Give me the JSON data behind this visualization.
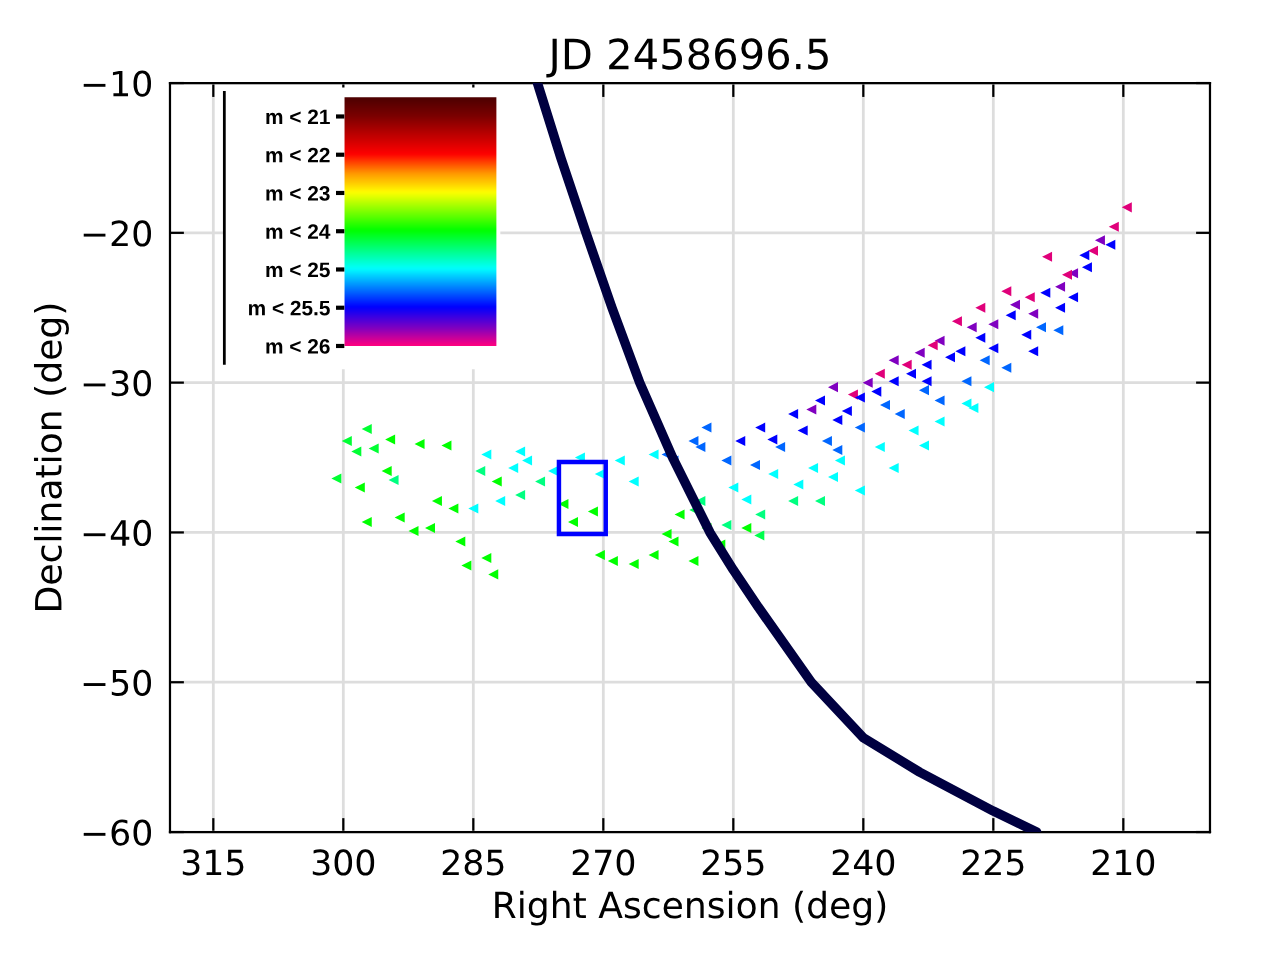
{
  "chart_data": {
    "type": "scatter",
    "title": "JD 2458696.5",
    "xlabel": "Right Ascension (deg)",
    "ylabel": "Declination (deg)",
    "xlim": [
      320,
      200
    ],
    "xticks": [
      315,
      300,
      285,
      270,
      255,
      240,
      225,
      210
    ],
    "ylim": [
      -60,
      -10
    ],
    "yticks": [
      {
        "value": -60,
        "label": "−60"
      },
      {
        "value": -50,
        "label": "−50"
      },
      {
        "value": -40,
        "label": "−40"
      },
      {
        "value": -30,
        "label": "−30"
      },
      {
        "value": -20,
        "label": "−20"
      },
      {
        "value": -10,
        "label": "−10"
      }
    ],
    "grid": true,
    "annotations": [
      "m < 21",
      "m < 22",
      "m < 23",
      "m < 24",
      "m < 25",
      "m < 25.5",
      "m < 26"
    ],
    "series": [
      {
        "marker": "triangle",
        "x": [
          299.6,
          297.3,
          298.5,
          296.5,
          294.6,
          291.2,
          288.1,
          300.8,
          295.0,
          294.2,
          298.1,
          297.3,
          293.5,
          291.9,
          290.0,
          286.5,
          285.8,
          282.7,
          283.5,
          289.2,
          287.3,
          284.2,
          282.3,
          279.6,
          277.3,
          274.6,
          273.5,
          271.2,
          270.4,
          268.9,
          266.5,
          264.2,
          262.7,
          259.6,
          261.2,
          258.1,
          285.0,
          281.9,
          280.4,
          278.8,
          275.8,
          272.7,
          270.4,
          268.1,
          266.5,
          264.2,
          279.6,
          283.5,
          262.7,
          259.6,
          258.1,
          209.6,
          211.1,
          218.8,
          213.5,
          220.8,
          223.5,
          226.5,
          229.2,
          235.0,
          241.2,
          238.1,
          215.8,
          217.3,
          220.4,
          225.0,
          231.2,
          236.5,
          243.5,
          212.7,
          214.2,
          217.3,
          221.2,
          225.0,
          228.8,
          232.7,
          236.5,
          240.4,
          245.0,
          248.1,
          251.9,
          254.2,
          241.9,
          232.7,
          215.8,
          220.4,
          223.5,
          228.1,
          231.2,
          235.8,
          240.4,
          244.2,
          249.6,
          255.8,
          258.8,
          261.9,
          228.1,
          231.2,
          234.2,
          238.1,
          242.7,
          245.8,
          250.4,
          255.0,
          236.5,
          240.4,
          245.0,
          248.1,
          251.9,
          255.8,
          258.8,
          253.5,
          256.5,
          261.9,
          230.0,
          226.5,
          223.0,
          219.0,
          214.5,
          211.5,
          234.5,
          238.5,
          243.0,
          247.0,
          250.5,
          227.5,
          233.5,
          222.5,
          239.5,
          246.0,
          216.5,
          232.0,
          226.0,
          219.5,
          217.5,
          233.0,
          237.5,
          243.0,
          252.5,
          225.5,
          247.5,
          253.5,
          243.5,
          233.0,
          227.3,
          259.5,
          252.0
        ],
        "values": [
          -33.9,
          -33.1,
          -34.6,
          -34.4,
          -33.8,
          -34.1,
          -34.2,
          -36.4,
          -35.9,
          -36.5,
          -37.0,
          -39.3,
          -39.0,
          -39.9,
          -39.7,
          -40.6,
          -42.2,
          -42.8,
          -41.7,
          -37.9,
          -38.4,
          -35.9,
          -36.6,
          -37.5,
          -36.6,
          -38.1,
          -39.3,
          -38.6,
          -41.5,
          -41.9,
          -42.1,
          -41.5,
          -40.1,
          -41.9,
          -38.8,
          -39.7,
          -38.4,
          -37.9,
          -35.7,
          -35.2,
          -35.9,
          -35.0,
          -36.1,
          -35.2,
          -36.6,
          -34.8,
          -34.6,
          -34.8,
          -34.8,
          -33.9,
          -33.0,
          -18.3,
          -19.6,
          -21.6,
          -21.2,
          -24.3,
          -23.9,
          -25.0,
          -25.9,
          -28.8,
          -30.8,
          -29.4,
          -22.7,
          -23.6,
          -25.4,
          -26.1,
          -27.2,
          -28.5,
          -30.3,
          -20.5,
          -22.3,
          -25.0,
          -26.8,
          -27.7,
          -27.9,
          -28.8,
          -29.9,
          -31.0,
          -31.2,
          -32.1,
          -33.0,
          -33.9,
          -31.9,
          -29.9,
          -24.3,
          -27.9,
          -29.0,
          -29.9,
          -31.2,
          -32.1,
          -33.0,
          -33.9,
          -34.3,
          -35.2,
          -34.3,
          -35.2,
          -31.4,
          -32.6,
          -33.2,
          -34.3,
          -35.2,
          -35.7,
          -36.1,
          -37.0,
          -35.7,
          -37.2,
          -37.9,
          -37.9,
          -38.8,
          -39.5,
          -37.9,
          -39.7,
          -40.8,
          -40.6,
          -28.3,
          -27.0,
          -25.5,
          -24.0,
          -21.5,
          -20.8,
          -29.4,
          -30.6,
          -32.5,
          -33.2,
          -33.8,
          -26.3,
          -28.0,
          -24.8,
          -30.0,
          -31.8,
          -22.8,
          -27.5,
          -28.5,
          -26.3,
          -26.5,
          -30.5,
          -31.5,
          -34.5,
          -35.5,
          -30.3,
          -36.8,
          -37.8,
          -36.3,
          -34.2,
          -31.7,
          -38.5,
          -40.2
        ],
        "colors": [
          "#00ff33",
          "#00ff33",
          "#00ff33",
          "#00ff33",
          "#00ff00",
          "#00ff00",
          "#00ff00",
          "#00ff33",
          "#00ff00",
          "#00ff80",
          "#00ff00",
          "#00ff00",
          "#00ff00",
          "#00ff00",
          "#00ff00",
          "#00ff00",
          "#00ff00",
          "#00ff00",
          "#00ff00",
          "#00ff00",
          "#00ff00",
          "#00ff80",
          "#00ff00",
          "#00ff80",
          "#00ff80",
          "#00ff00",
          "#00ff00",
          "#00ff00",
          "#00ff00",
          "#00ff00",
          "#00ff00",
          "#00ff00",
          "#00ff00",
          "#00ff00",
          "#00ff00",
          "#00ff00",
          "#00ffff",
          "#00ffff",
          "#00ffff",
          "#00ffff",
          "#00ffff",
          "#00ffff",
          "#00ffff",
          "#00ffff",
          "#00ffff",
          "#00ffff",
          "#00ffff",
          "#00ffff",
          "#0066ff",
          "#0066ff",
          "#0066ff",
          "#e0007a",
          "#e0007a",
          "#e0007a",
          "#e0007a",
          "#e0007a",
          "#e0007a",
          "#e0007a",
          "#e0007a",
          "#e0007a",
          "#e0007a",
          "#e0007a",
          "#8000c0",
          "#8000c0",
          "#8000c0",
          "#8000c0",
          "#8000c0",
          "#8000c0",
          "#8000c0",
          "#8000c0",
          "#0000ff",
          "#0000ff",
          "#0000ff",
          "#0000ff",
          "#0000ff",
          "#0000ff",
          "#0000ff",
          "#0000ff",
          "#0000ff",
          "#0000ff",
          "#0000ff",
          "#0000ff",
          "#0000ff",
          "#0000ff",
          "#0000ff",
          "#0000ff",
          "#0066ff",
          "#0066ff",
          "#0066ff",
          "#0066ff",
          "#0066ff",
          "#0066ff",
          "#0066ff",
          "#0066ff",
          "#0066ff",
          "#0066ff",
          "#00ffff",
          "#00ffff",
          "#00ffff",
          "#00ffff",
          "#00ffff",
          "#00ffff",
          "#00ffff",
          "#00ffff",
          "#00ffff",
          "#00ffff",
          "#00ff80",
          "#00ff80",
          "#00ff80",
          "#00ff80",
          "#00ff80",
          "#00ff00",
          "#00ff00",
          "#00ff00",
          "#0000ff",
          "#0000ff",
          "#0000ff",
          "#0000ff",
          "#0000ff",
          "#0000ff",
          "#0000ff",
          "#0000ff",
          "#0000ff",
          "#0000ff",
          "#0000ff",
          "#8000c0",
          "#8000c0",
          "#8000c0",
          "#8000c0",
          "#8000c0",
          "#e0007a",
          "#e0007a",
          "#0066ff",
          "#0066ff",
          "#0066ff",
          "#0066ff",
          "#0066ff",
          "#0066ff",
          "#0066ff",
          "#00ffff",
          "#00ffff",
          "#00ffff",
          "#00ffff",
          "#00ffff",
          "#00ffff",
          "#00ff4d",
          "#00ff4d"
        ]
      },
      {
        "type": "line",
        "color": "#000040",
        "x": [
          277.6,
          274.9,
          272.0,
          269.0,
          265.8,
          262.0,
          257.7,
          255.0,
          252.1,
          246.0,
          240.0,
          233.5,
          225.0,
          220.0
        ],
        "values": [
          -10,
          -15,
          -20,
          -25,
          -30,
          -35,
          -40,
          -42.5,
          -45,
          -50,
          -53.7,
          -56,
          -58.6,
          -60
        ]
      }
    ]
  }
}
